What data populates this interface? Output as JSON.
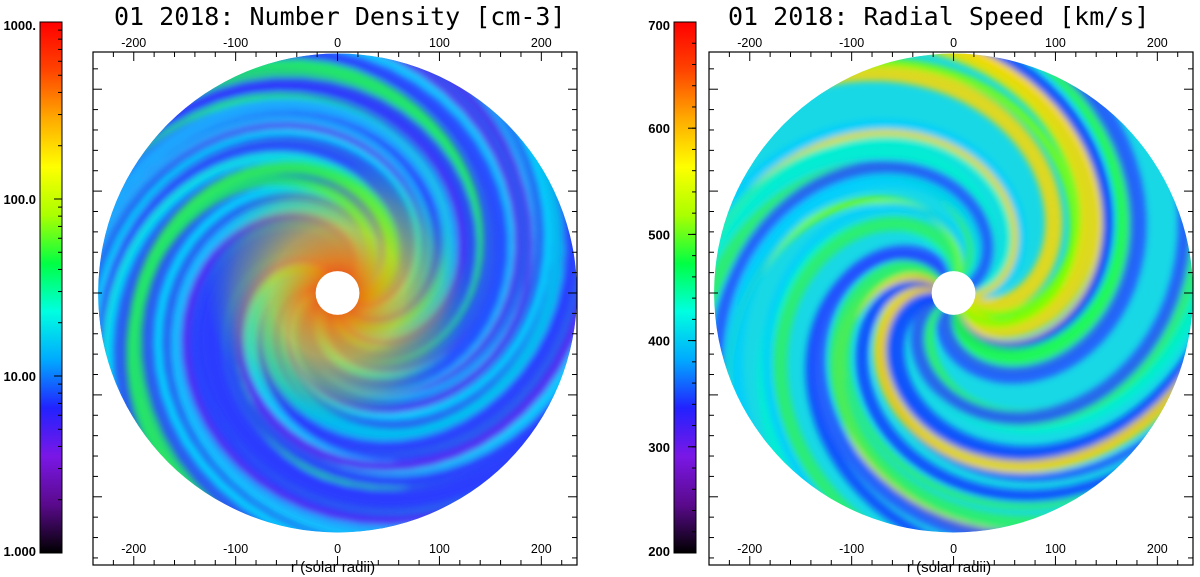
{
  "chart_data": [
    {
      "type": "heatmap",
      "title": "01 2018: Number Density [cm-3]",
      "xlabel": "r (solar radii)",
      "x_ticks": [
        "-200",
        "-100",
        "0",
        "100",
        "200"
      ],
      "xlim": [
        -240,
        235
      ],
      "colorbar": {
        "scale": "log",
        "range": [
          1.0,
          1000.0
        ],
        "tick_labels": [
          "1.000",
          "10.00",
          "100.0",
          "1000."
        ],
        "tick_values": [
          1,
          10,
          100,
          1000
        ]
      },
      "inner_boundary_radius": 21.5,
      "outer_radius": 235
    },
    {
      "type": "heatmap",
      "title": "01 2018: Radial Speed [km/s]",
      "xlabel": "r (solar radii)",
      "x_ticks": [
        "-200",
        "-100",
        "0",
        "100",
        "200"
      ],
      "xlim": [
        -240,
        235
      ],
      "colorbar": {
        "scale": "linear",
        "range": [
          200,
          700
        ],
        "tick_labels": [
          "200",
          "300",
          "400",
          "500",
          "600",
          "700"
        ],
        "tick_values": [
          200,
          300,
          400,
          500,
          600,
          700
        ]
      },
      "inner_boundary_radius": 21.5,
      "outer_radius": 235
    }
  ],
  "colors": {
    "colormap": [
      "#000000",
      "#5a0a8c",
      "#7a17e6",
      "#2222ff",
      "#00aaff",
      "#00ffe0",
      "#00ff44",
      "#aaff00",
      "#ffff00",
      "#ffaa00",
      "#ff4400",
      "#ff0000"
    ]
  }
}
